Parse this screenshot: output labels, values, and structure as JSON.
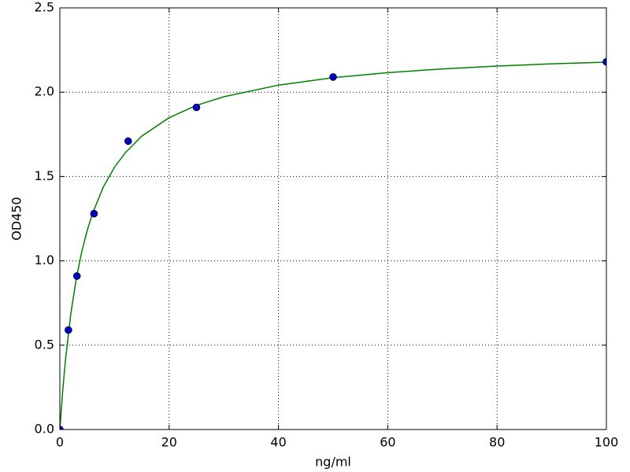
{
  "chart_data": {
    "type": "scatter",
    "xlabel": "ng/ml",
    "ylabel": "OD450",
    "series": [
      {
        "style": "markers",
        "color": "#0000bf",
        "x": [
          0,
          1.5625,
          3.125,
          6.25,
          12.5,
          25,
          50,
          100
        ],
        "values": [
          0.0,
          0.59,
          0.91,
          1.28,
          1.71,
          1.91,
          2.09,
          2.18
        ]
      },
      {
        "style": "line",
        "color": "#007f00",
        "x": [
          0,
          0.5,
          1,
          2,
          3,
          4,
          5,
          6,
          8,
          10,
          12,
          15,
          20,
          25,
          30,
          40,
          50,
          60,
          70,
          80,
          90,
          100
        ],
        "values": [
          0,
          0.221,
          0.403,
          0.685,
          0.893,
          1.053,
          1.18,
          1.283,
          1.441,
          1.555,
          1.642,
          1.74,
          1.849,
          1.922,
          1.973,
          2.042,
          2.086,
          2.116,
          2.138,
          2.155,
          2.168,
          2.178
        ]
      }
    ],
    "xlim": [
      0,
      100
    ],
    "xticks": [
      0,
      20,
      40,
      60,
      80,
      100
    ],
    "ylim": [
      0,
      2.5
    ],
    "yticks": [
      {
        "value": 0,
        "label": "0.0"
      },
      0.5,
      {
        "value": 1,
        "label": "1.0"
      },
      1.5,
      {
        "value": 2,
        "label": "2.0"
      },
      2.5
    ],
    "grid": true
  }
}
